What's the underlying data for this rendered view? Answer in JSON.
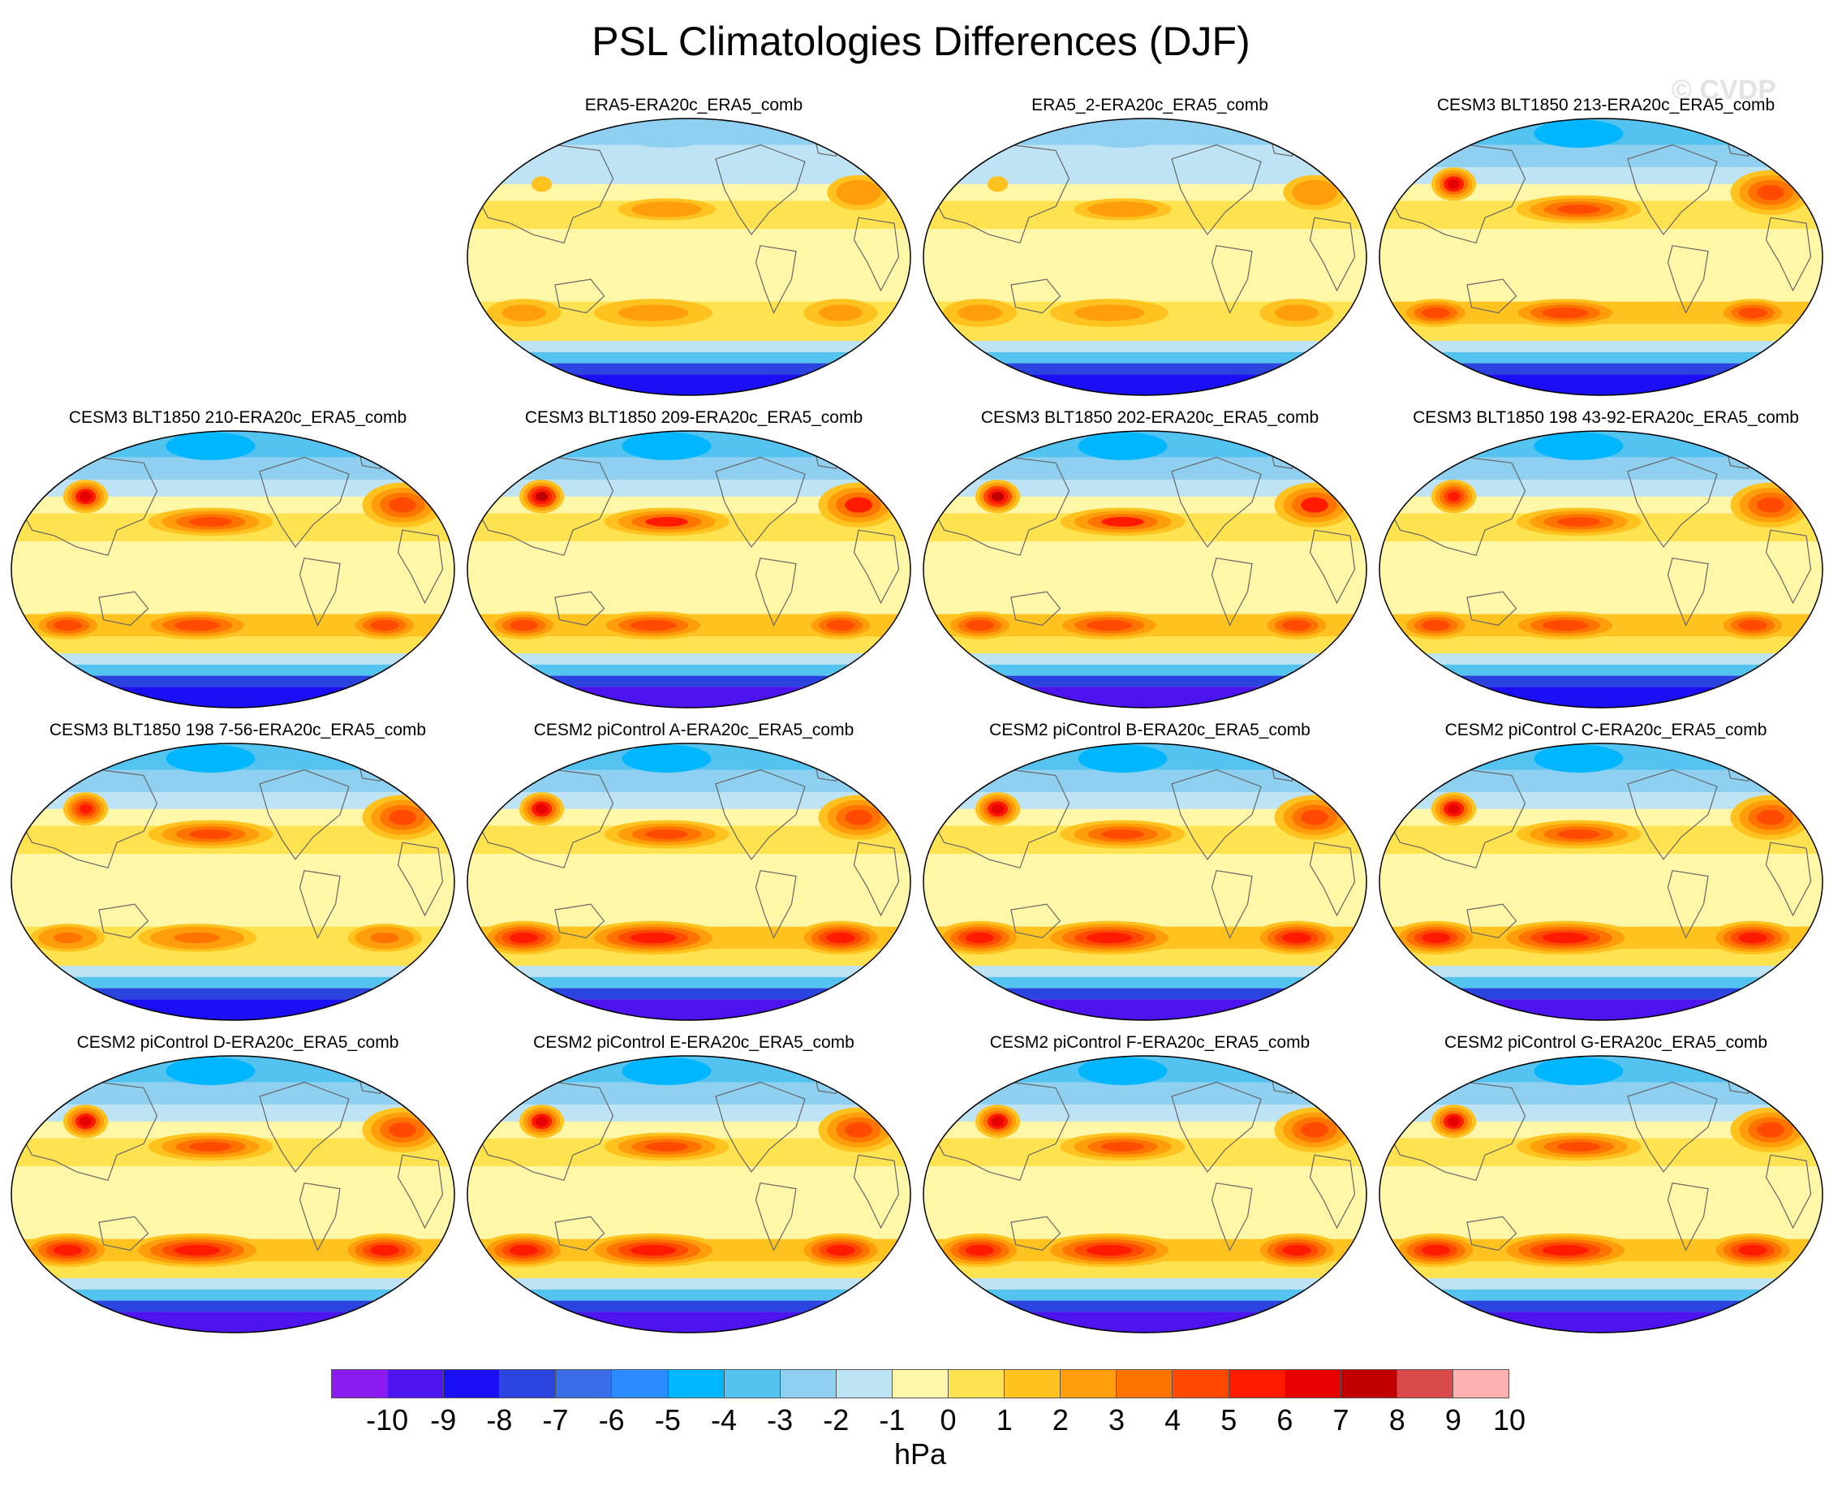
{
  "title": "PSL Climatologies Differences (DJF)",
  "watermark": "© CVDP",
  "chart_data": {
    "type": "heatmap",
    "title": "PSL Climatologies Differences (DJF)",
    "projection": "Robinson, Pacific-centered global maps",
    "colorbar": {
      "levels": [
        -10,
        -9,
        -8,
        -7,
        -6,
        -5,
        -4,
        -3,
        -2,
        -1,
        0,
        1,
        2,
        3,
        4,
        5,
        6,
        7,
        8,
        9,
        10
      ],
      "colors": [
        "#8a1cf0",
        "#4d14f0",
        "#1a0ff5",
        "#2b44e0",
        "#3a6ee8",
        "#2b8cff",
        "#00b6ff",
        "#55c3f0",
        "#8fd0f0",
        "#bde3f5",
        "#fff7a8",
        "#ffe24f",
        "#ffc21f",
        "#ff9d0a",
        "#ff7400",
        "#ff4a00",
        "#ff1a00",
        "#e60000",
        "#c00000",
        "#d94a4a",
        "#ffb0b0"
      ],
      "units": "hPa",
      "orientation": "horizontal",
      "placement": "bottom"
    },
    "panels": [
      {
        "name": "ERA5-ERA20c_ERA5_comb",
        "row": 0,
        "col": 1,
        "intensity": 0.5,
        "nh": 0.6,
        "asia": 0.2
      },
      {
        "name": "ERA5_2-ERA20c_ERA5_comb",
        "row": 0,
        "col": 2,
        "intensity": 0.5,
        "nh": 0.6,
        "asia": 0.2
      },
      {
        "name": "CESM3 BLT1850 213-ERA20c_ERA5_comb",
        "row": 0,
        "col": 3,
        "intensity": 0.8,
        "nh": 1.0,
        "asia": 0.8
      },
      {
        "name": "CESM3 BLT1850 210-ERA20c_ERA5_comb",
        "row": 1,
        "col": 0,
        "intensity": 0.8,
        "nh": 1.0,
        "asia": 0.8
      },
      {
        "name": "CESM3 BLT1850 209-ERA20c_ERA5_comb",
        "row": 1,
        "col": 1,
        "intensity": 0.85,
        "nh": 1.1,
        "asia": 0.9
      },
      {
        "name": "CESM3 BLT1850 202-ERA20c_ERA5_comb",
        "row": 1,
        "col": 2,
        "intensity": 0.85,
        "nh": 1.1,
        "asia": 0.9
      },
      {
        "name": "CESM3 BLT1850 198 43-92-ERA20c_ERA5_comb",
        "row": 1,
        "col": 3,
        "intensity": 0.75,
        "nh": 0.9,
        "asia": 0.7
      },
      {
        "name": "CESM3 BLT1850 198 7-56-ERA20c_ERA5_comb",
        "row": 2,
        "col": 0,
        "intensity": 0.65,
        "nh": 0.9,
        "asia": 0.7
      },
      {
        "name": "CESM2 piControl A-ERA20c_ERA5_comb",
        "row": 2,
        "col": 1,
        "intensity": 1.0,
        "nh": 1.0,
        "asia": 0.8
      },
      {
        "name": "CESM2 piControl B-ERA20c_ERA5_comb",
        "row": 2,
        "col": 2,
        "intensity": 1.0,
        "nh": 1.0,
        "asia": 0.8
      },
      {
        "name": "CESM2 piControl C-ERA20c_ERA5_comb",
        "row": 2,
        "col": 3,
        "intensity": 1.0,
        "nh": 1.0,
        "asia": 0.8
      },
      {
        "name": "CESM2 piControl D-ERA20c_ERA5_comb",
        "row": 3,
        "col": 0,
        "intensity": 1.05,
        "nh": 1.0,
        "asia": 0.8
      },
      {
        "name": "CESM2 piControl E-ERA20c_ERA5_comb",
        "row": 3,
        "col": 1,
        "intensity": 1.05,
        "nh": 1.0,
        "asia": 0.8
      },
      {
        "name": "CESM2 piControl F-ERA20c_ERA5_comb",
        "row": 3,
        "col": 2,
        "intensity": 1.05,
        "nh": 1.0,
        "asia": 0.8
      },
      {
        "name": "CESM2 piControl G-ERA20c_ERA5_comb",
        "row": 3,
        "col": 3,
        "intensity": 1.05,
        "nh": 1.0,
        "asia": 0.8
      }
    ]
  }
}
